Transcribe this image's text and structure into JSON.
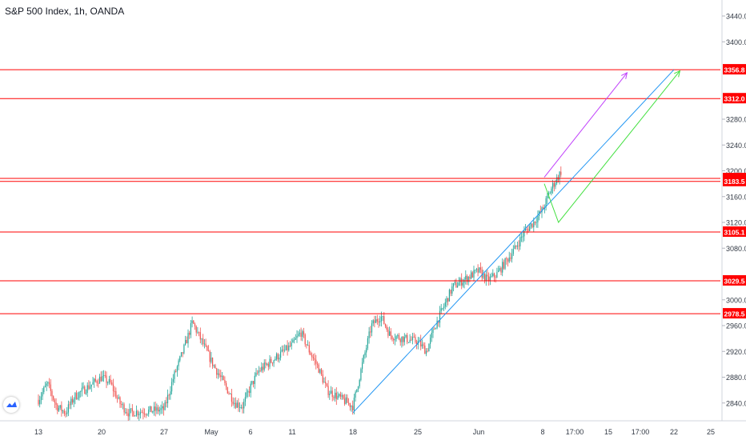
{
  "chart_data": {
    "type": "candlestick",
    "title": "S&P 500 Index, 1h, OANDA",
    "y_axis": {
      "position": "right",
      "ylim": [
        2818,
        3468
      ],
      "ticks": [
        2840.0,
        2880.0,
        2920.0,
        2960.0,
        3000.0,
        3080.0,
        3120.0,
        3160.0,
        3200.0,
        3240.0,
        3280.0,
        3400.0,
        3440.0
      ]
    },
    "x_axis": {
      "tick_labels": [
        "13",
        "20",
        "27",
        "May",
        "6",
        "11",
        "18",
        "25",
        "Jun",
        "8",
        "17:00",
        "15",
        "17:00",
        "22",
        "25"
      ]
    },
    "colors": {
      "up": "#26a69a",
      "down": "#ef5350",
      "level_line": "#ff0000",
      "trendline": "#2196f3",
      "arrow_purple": "#c040fb",
      "arrow_green": "#43e040"
    },
    "price_levels": [
      {
        "price": 3356.8,
        "label": "3356.8"
      },
      {
        "price": 3312.0,
        "label": "3312.0"
      },
      {
        "price": 3188.2,
        "label": "3188.2"
      },
      {
        "price": 3183.5,
        "label": "3183.5"
      },
      {
        "price": 3105.1,
        "label": "3105.1"
      },
      {
        "price": 3029.5,
        "label": "3029.5"
      },
      {
        "price": 2978.5,
        "label": "2978.5"
      }
    ],
    "price_path": [
      [
        "Apr 13",
        2845
      ],
      [
        "Apr 14",
        2870
      ],
      [
        "Apr 15",
        2835
      ],
      [
        "Apr 16",
        2825
      ],
      [
        "Apr 17",
        2850
      ],
      [
        "Apr 20",
        2880
      ],
      [
        "Apr 21",
        2870
      ],
      [
        "Apr 22",
        2840
      ],
      [
        "Apr 23",
        2825
      ],
      [
        "Apr 27",
        2830
      ],
      [
        "Apr 28",
        2880
      ],
      [
        "Apr 29",
        2920
      ],
      [
        "Apr 30",
        2965
      ],
      [
        "May 1",
        2905
      ],
      [
        "May 4",
        2840
      ],
      [
        "May 5",
        2835
      ],
      [
        "May 6",
        2865
      ],
      [
        "May 7",
        2890
      ],
      [
        "May 8",
        2900
      ],
      [
        "May 11",
        2930
      ],
      [
        "May 12",
        2950
      ],
      [
        "May 13",
        2920
      ],
      [
        "May 14",
        2895
      ],
      [
        "May 15",
        2860
      ],
      [
        "May 18",
        2835
      ],
      [
        "May 19",
        2900
      ],
      [
        "May 20",
        2960
      ],
      [
        "May 21",
        2975
      ],
      [
        "May 22",
        2945
      ],
      [
        "May 25",
        2935
      ],
      [
        "May 26",
        2920
      ],
      [
        "May 27",
        2960
      ],
      [
        "May 28",
        2990
      ],
      [
        "May 29",
        3020
      ],
      [
        "Jun 1",
        3045
      ],
      [
        "Jun 2",
        3030
      ],
      [
        "Jun 3",
        3040
      ],
      [
        "Jun 4",
        3060
      ],
      [
        "Jun 5",
        3080
      ],
      [
        "Jun 6",
        3105
      ],
      [
        "Jun 7",
        3120
      ],
      [
        "Jun 8",
        3140
      ],
      [
        "Jun 9",
        3175
      ],
      [
        "Jun 10",
        3200
      ]
    ],
    "trendline": {
      "from": [
        "May 18",
        2825
      ],
      "to": [
        "Jun 22",
        3356.8
      ]
    },
    "projections": [
      {
        "name": "purple",
        "points": [
          [
            "Jun 8",
            3190
          ],
          [
            "Jun 17",
            3352
          ]
        ]
      },
      {
        "name": "green",
        "points": [
          [
            "Jun 8",
            3180
          ],
          [
            "Jun 9",
            3120
          ],
          [
            "Jun 17",
            3355
          ]
        ]
      }
    ]
  }
}
